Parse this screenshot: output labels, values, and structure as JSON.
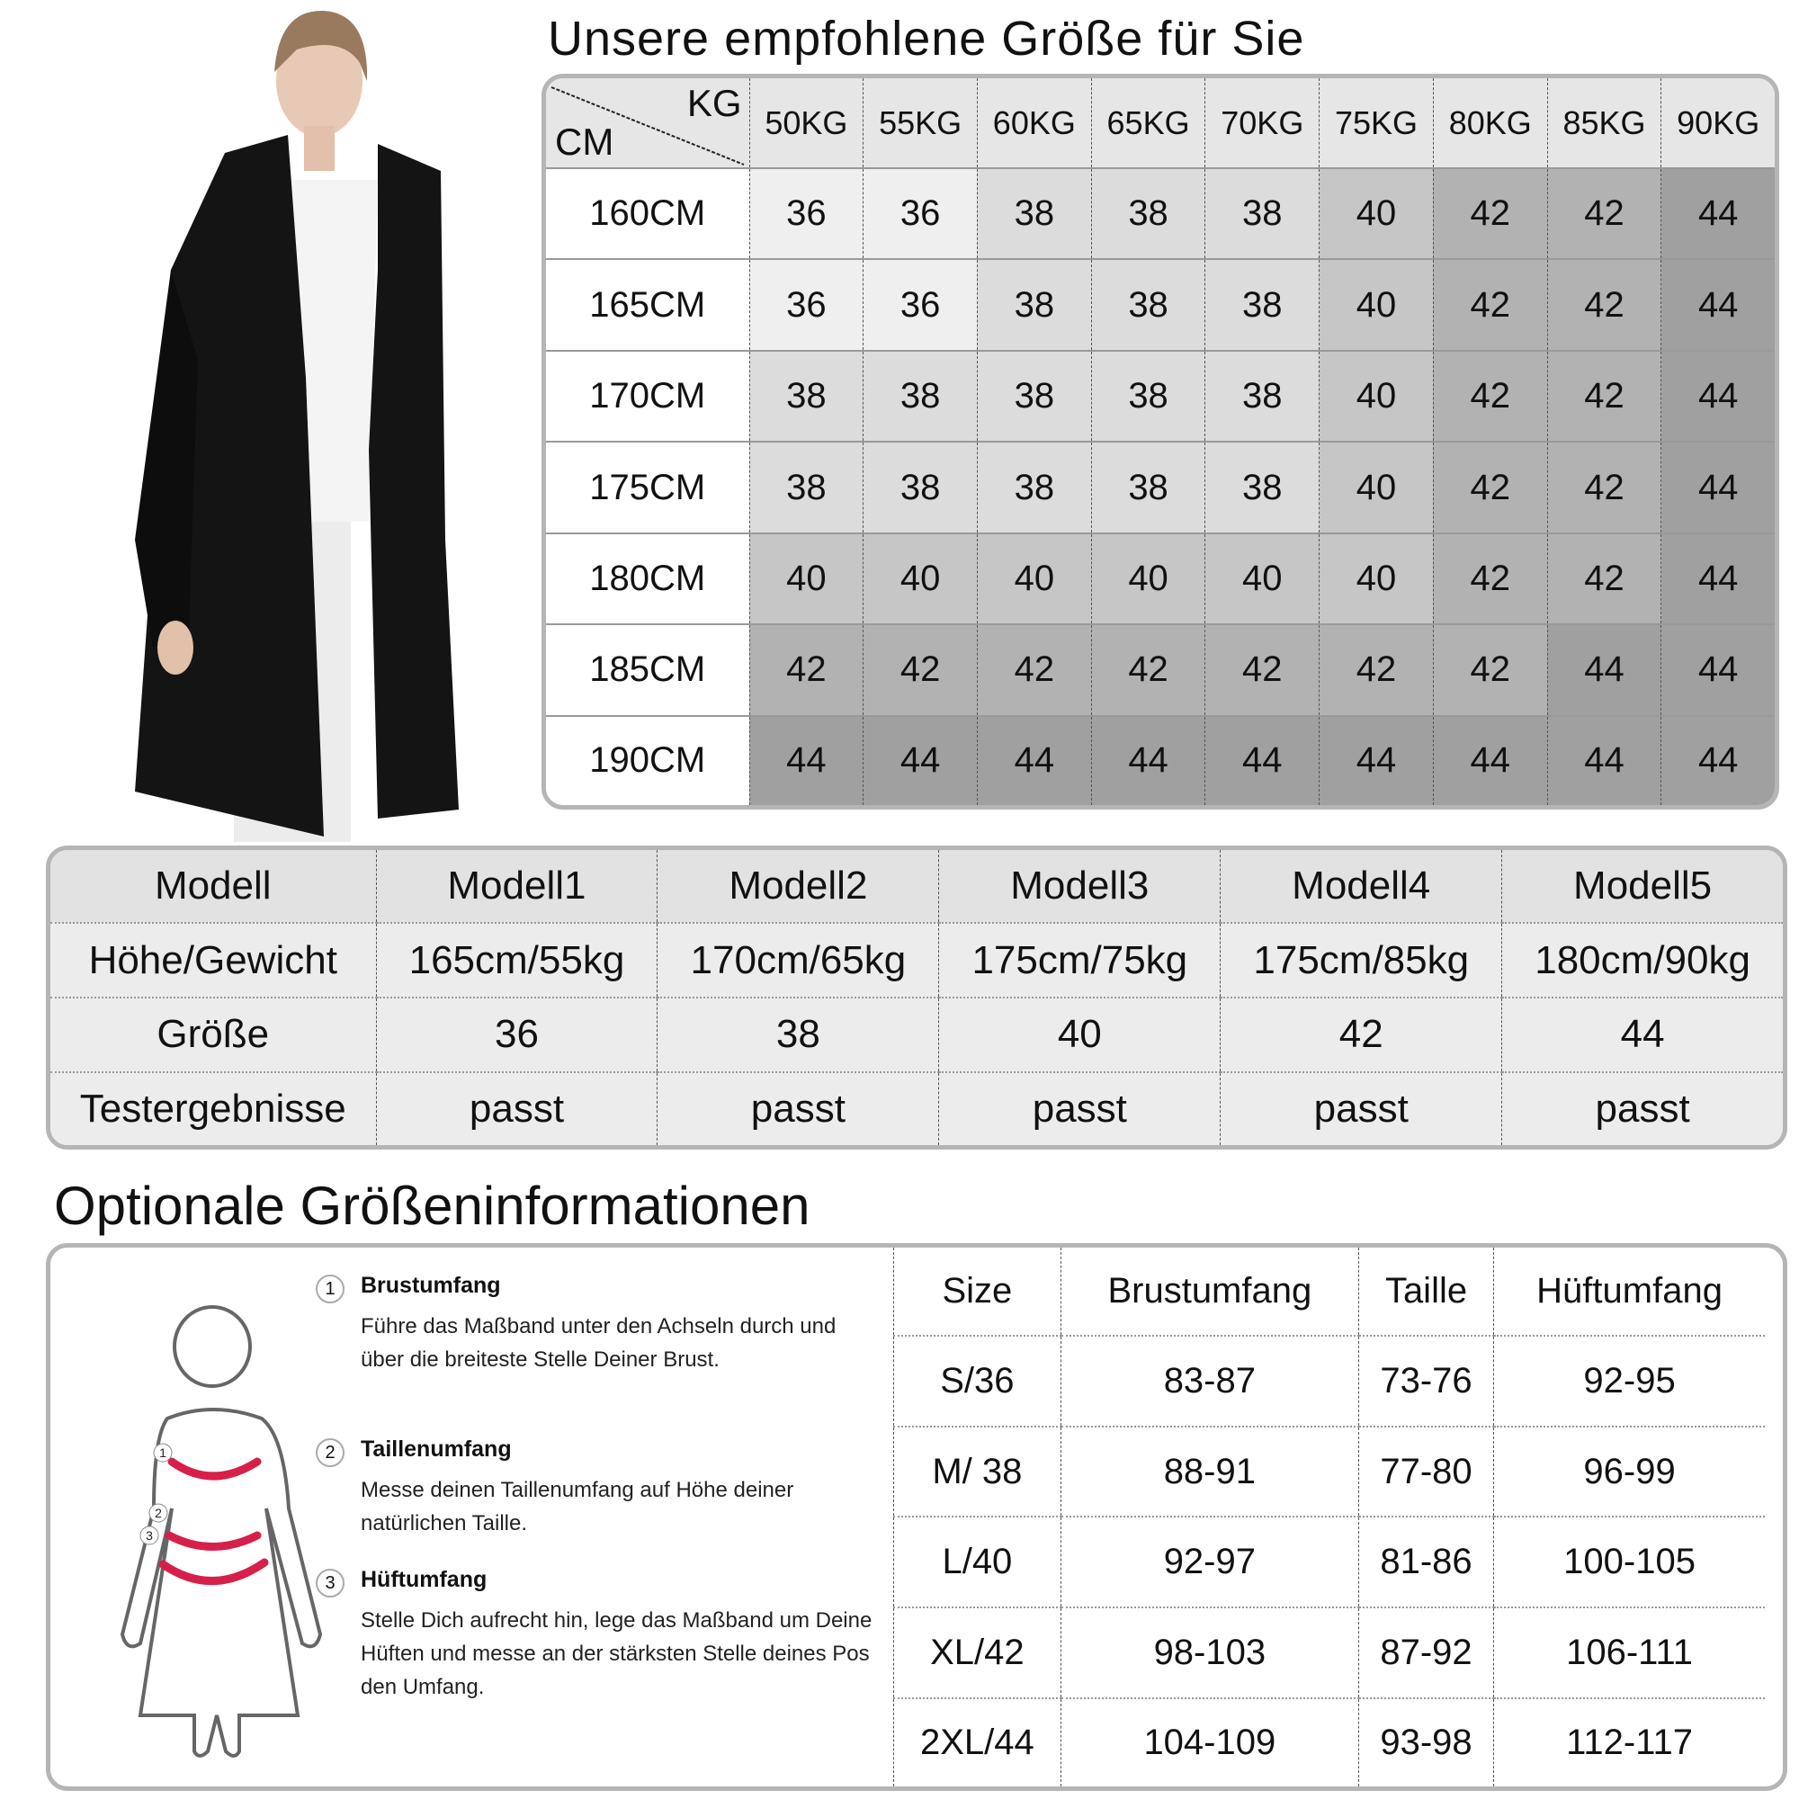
{
  "title": "Unsere empfohlene Größe für Sie",
  "size_chart": {
    "corner_kg": "KG",
    "corner_cm": "CM",
    "weights": [
      "50KG",
      "55KG",
      "60KG",
      "65KG",
      "70KG",
      "75KG",
      "80KG",
      "85KG",
      "90KG"
    ],
    "rows": [
      {
        "height": "160CM",
        "sizes": [
          "36",
          "36",
          "38",
          "38",
          "38",
          "40",
          "42",
          "42",
          "44"
        ]
      },
      {
        "height": "165CM",
        "sizes": [
          "36",
          "36",
          "38",
          "38",
          "38",
          "40",
          "42",
          "42",
          "44"
        ]
      },
      {
        "height": "170CM",
        "sizes": [
          "38",
          "38",
          "38",
          "38",
          "38",
          "40",
          "42",
          "42",
          "44"
        ]
      },
      {
        "height": "175CM",
        "sizes": [
          "38",
          "38",
          "38",
          "38",
          "38",
          "40",
          "42",
          "42",
          "44"
        ]
      },
      {
        "height": "180CM",
        "sizes": [
          "40",
          "40",
          "40",
          "40",
          "40",
          "40",
          "42",
          "42",
          "44"
        ]
      },
      {
        "height": "185CM",
        "sizes": [
          "42",
          "42",
          "42",
          "42",
          "42",
          "42",
          "42",
          "44",
          "44"
        ]
      },
      {
        "height": "190CM",
        "sizes": [
          "44",
          "44",
          "44",
          "44",
          "44",
          "44",
          "44",
          "44",
          "44"
        ]
      }
    ],
    "size_shades": {
      "36": "#efefef",
      "38": "#dcdcdc",
      "40": "#c6c6c6",
      "42": "#b2b2b2",
      "44": "#a0a0a0"
    }
  },
  "models": {
    "rows": [
      [
        "Modell",
        "Modell1",
        "Modell2",
        "Modell3",
        "Modell4",
        "Modell5"
      ],
      [
        "Höhe/Gewicht",
        "165cm/55kg",
        "170cm/65kg",
        "175cm/75kg",
        "175cm/85kg",
        "180cm/90kg"
      ],
      [
        "Größe",
        "36",
        "38",
        "40",
        "42",
        "44"
      ],
      [
        "Testergebnisse",
        "passt",
        "passt",
        "passt",
        "passt",
        "passt"
      ]
    ]
  },
  "optional": {
    "title": "Optionale Größeninformationen",
    "steps": [
      {
        "num": "1",
        "heading": "Brustumfang",
        "text": "Führe das Maßband unter den Achseln durch und über die breiteste Stelle Deiner Brust."
      },
      {
        "num": "2",
        "heading": "Taillenumfang",
        "text": "Messe deinen Taillenumfang auf Höhe deiner natürlichen Taille."
      },
      {
        "num": "3",
        "heading": "Hüftumfang",
        "text": "Stelle Dich aufrecht hin, lege das Maßband um Deine Hüften und messe an der stärksten Stelle deines Pos den Umfang."
      }
    ],
    "table": {
      "headers": [
        "Size",
        "Brustumfang",
        "Taille",
        "Hüftumfang"
      ],
      "rows": [
        [
          "S/36",
          "83-87",
          "73-76",
          "92-95"
        ],
        [
          "M/ 38",
          "88-91",
          "77-80",
          "96-99"
        ],
        [
          "L/40",
          "92-97",
          "81-86",
          "100-105"
        ],
        [
          "XL/42",
          "98-103",
          "87-92",
          "106-111"
        ],
        [
          "2XL/44",
          "104-109",
          "93-98",
          "112-117"
        ]
      ]
    },
    "accent_color": "#d6204a"
  }
}
